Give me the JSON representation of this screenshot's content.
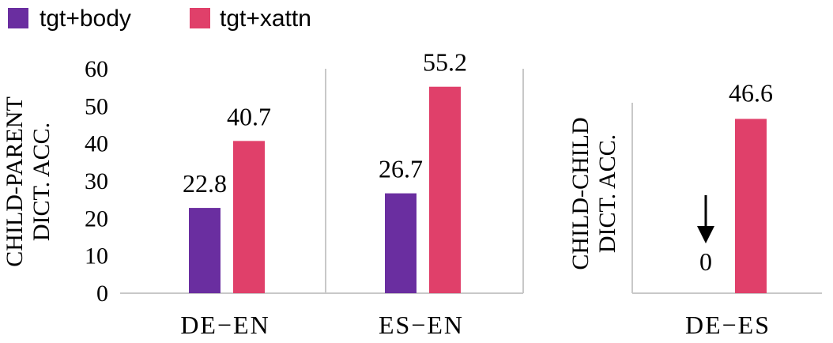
{
  "legend": {
    "items": [
      {
        "label": "tgt+body",
        "color": "#6a2ea0"
      },
      {
        "label": "tgt+xattn",
        "color": "#e0406a"
      }
    ]
  },
  "chart_data": [
    {
      "type": "bar",
      "ylabel": "CHILD-PARENT DICT. ACC.",
      "ylabel_lines": [
        "CHILD-PARENT",
        "DICT. ACC."
      ],
      "ylim": [
        0,
        60
      ],
      "yticks": [
        0,
        10,
        20,
        30,
        40,
        50,
        60
      ],
      "grid": false,
      "categories": [
        "DE−EN",
        "ES−EN"
      ],
      "series": [
        {
          "name": "tgt+body",
          "color": "#6a2ea0",
          "values": [
            22.8,
            26.7
          ]
        },
        {
          "name": "tgt+xattn",
          "color": "#e0406a",
          "values": [
            40.7,
            55.2
          ]
        }
      ],
      "data_labels": [
        [
          "22.8",
          "26.7"
        ],
        [
          "40.7",
          "55.2"
        ]
      ]
    },
    {
      "type": "bar",
      "ylabel": "CHILD-CHILD DICT. ACC.",
      "ylabel_lines": [
        "CHILD-CHILD",
        "DICT. ACC."
      ],
      "ylim": [
        0,
        60
      ],
      "grid": false,
      "categories": [
        "DE−ES"
      ],
      "series": [
        {
          "name": "tgt+body",
          "color": "#6a2ea0",
          "values": [
            0
          ]
        },
        {
          "name": "tgt+xattn",
          "color": "#e0406a",
          "values": [
            46.6
          ]
        }
      ],
      "data_labels": [
        [
          "0"
        ],
        [
          "46.6"
        ]
      ],
      "annotations": [
        {
          "type": "arrow-down",
          "target": "tgt+body zero value"
        }
      ]
    }
  ]
}
